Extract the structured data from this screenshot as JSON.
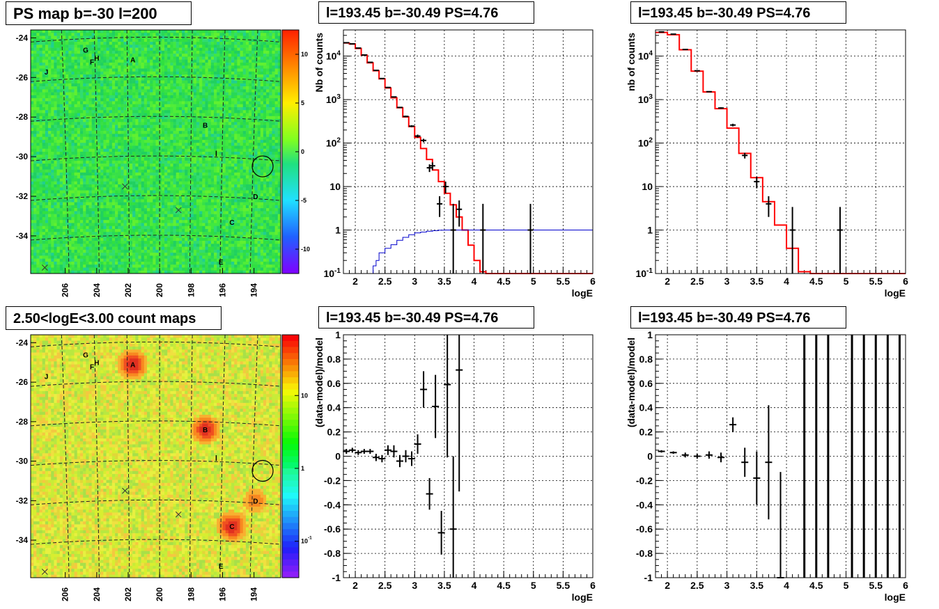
{
  "panels": {
    "top_left_title": "PS map b=-30 l=200",
    "top_mid_title": "l=193.45 b=-30.49 PS=4.76",
    "top_right_title": "l=193.45 b=-30.49 PS=4.76",
    "bottom_left_title": "2.50<logE<3.00 count maps",
    "bottom_mid_title": "l=193.45 b=-30.49 PS=4.76",
    "bottom_right_title": "l=193.45 b=-30.49 PS=4.76"
  },
  "colors": {
    "model_line": "#ff0000",
    "aux_line": "#0000cc",
    "data_points": "#000000",
    "frame": "#000000",
    "grid": "#000000"
  },
  "chart_data": [
    {
      "id": "ps_map",
      "type": "heatmap",
      "title": "PS map b=-30 l=200",
      "x_ticks": [
        "206",
        "204",
        "202",
        "200",
        "198",
        "196",
        "194"
      ],
      "y_ticks": [
        "-24",
        "-26",
        "-28",
        "-30",
        "-32",
        "-34"
      ],
      "colorbar_ticks": [
        "10",
        "5",
        "0",
        "-5",
        "-10"
      ],
      "sources": [
        {
          "label": "G",
          "l": 204.7,
          "b": -24.6
        },
        {
          "label": "H",
          "l": 204.0,
          "b": -25.0
        },
        {
          "label": "F",
          "l": 204.3,
          "b": -25.2
        },
        {
          "label": "A",
          "l": 201.7,
          "b": -25.1
        },
        {
          "label": "J",
          "l": 207.2,
          "b": -25.7
        },
        {
          "label": "B",
          "l": 197.1,
          "b": -28.4
        },
        {
          "label": "D",
          "l": 193.9,
          "b": -32.0
        },
        {
          "label": "C",
          "l": 195.4,
          "b": -33.3
        },
        {
          "label": "E",
          "l": 196.1,
          "b": -35.3
        }
      ],
      "selected": {
        "l": 193.45,
        "b": -30.49
      }
    },
    {
      "id": "nb_counts_fit",
      "type": "line",
      "title": "l=193.45 b=-30.49 PS=4.76",
      "xlabel": "logE",
      "ylabel": "Nb of counts",
      "xlim": [
        1.8,
        6
      ],
      "ylim": [
        0.1,
        40000
      ],
      "y_scale": "log",
      "x_ticks": [
        "2",
        "2.5",
        "3",
        "3.5",
        "4",
        "4.5",
        "5",
        "5.5",
        "6"
      ],
      "y_ticks": [
        "10^-1",
        "1",
        "10",
        "10^2",
        "10^3",
        "10^4"
      ],
      "series": [
        {
          "kind": "model_step",
          "x": [
            1.8,
            1.9,
            2.0,
            2.1,
            2.2,
            2.3,
            2.4,
            2.5,
            2.6,
            2.7,
            2.8,
            2.9,
            3.0,
            3.1,
            3.2,
            3.3,
            3.4,
            3.5,
            3.6,
            3.7,
            3.8,
            3.9,
            4.0,
            4.1,
            4.2,
            6.0
          ],
          "y": [
            20000,
            19000,
            15000,
            10500,
            7000,
            4600,
            3000,
            1850,
            1100,
            650,
            400,
            240,
            135,
            75,
            42,
            24,
            13,
            7,
            3.8,
            2,
            1,
            0.45,
            0.2,
            0.11,
            0.1,
            0.1
          ]
        },
        {
          "kind": "aux_step",
          "x": [
            1.8,
            2.0,
            2.2,
            2.3,
            2.35,
            2.4,
            2.5,
            2.6,
            2.7,
            2.8,
            2.9,
            3.0,
            3.1,
            3.2,
            3.3,
            3.4,
            3.5,
            6.0
          ],
          "y": [
            0.1,
            0.1,
            0.1,
            0.15,
            0.2,
            0.3,
            0.38,
            0.46,
            0.58,
            0.68,
            0.78,
            0.86,
            0.9,
            0.94,
            0.97,
            0.99,
            1,
            1
          ]
        },
        {
          "kind": "data",
          "x": [
            1.85,
            1.95,
            2.05,
            2.15,
            2.25,
            2.35,
            2.45,
            2.55,
            2.65,
            2.75,
            2.85,
            2.95,
            3.05,
            3.15,
            3.25,
            3.3,
            3.42,
            3.52,
            3.65,
            3.75,
            4.15,
            4.95
          ],
          "y": [
            20300,
            19100,
            15300,
            10600,
            7200,
            4700,
            3050,
            1900,
            1150,
            660,
            410,
            245,
            145,
            115,
            27,
            30,
            4,
            10,
            1,
            3,
            1,
            1
          ],
          "err": [
            0.02,
            0.02,
            0.02,
            0.02,
            0.02,
            0.02,
            0.02,
            0.03,
            0.03,
            0.03,
            0.04,
            0.05,
            0.08,
            0.09,
            0.2,
            0.2,
            0.5,
            0.3,
            1.5,
            0.6,
            1.5,
            1.5
          ]
        }
      ]
    },
    {
      "id": "nb_counts_rebinned",
      "type": "line",
      "title": "l=193.45 b=-30.49 PS=4.76",
      "xlabel": "logE",
      "ylabel": "nb of counts",
      "xlim": [
        1.8,
        6
      ],
      "ylim": [
        0.1,
        40000
      ],
      "y_scale": "log",
      "x_ticks": [
        "2",
        "2.5",
        "3",
        "3.5",
        "4",
        "4.5",
        "5",
        "5.5",
        "6"
      ],
      "y_ticks": [
        "10^-1",
        "1",
        "10",
        "10^2",
        "10^3",
        "10^4"
      ],
      "series": [
        {
          "kind": "model_step",
          "x": [
            1.8,
            2.0,
            2.2,
            2.4,
            2.6,
            2.8,
            3.0,
            3.2,
            3.4,
            3.6,
            3.8,
            4.0,
            4.2,
            4.4,
            6.0
          ],
          "y": [
            35000,
            31000,
            14000,
            4500,
            1500,
            620,
            220,
            58,
            16,
            4.5,
            1.3,
            0.38,
            0.11,
            0.1,
            0.1
          ]
        },
        {
          "kind": "data",
          "x": [
            1.9,
            2.1,
            2.3,
            2.5,
            2.7,
            2.9,
            3.1,
            3.3,
            3.5,
            3.7,
            4.1,
            4.9
          ],
          "y": [
            36000,
            32000,
            14200,
            4600,
            1520,
            640,
            260,
            52,
            13,
            4,
            1,
            1
          ],
          "err": [
            0.01,
            0.01,
            0.01,
            0.02,
            0.03,
            0.04,
            0.07,
            0.15,
            0.3,
            0.5,
            1.2,
            1.2
          ]
        }
      ]
    },
    {
      "id": "count_map",
      "type": "heatmap",
      "title": "2.50<logE<3.00 count maps",
      "x_ticks": [
        "206",
        "204",
        "202",
        "200",
        "198",
        "196",
        "194"
      ],
      "y_ticks": [
        "-24",
        "-26",
        "-28",
        "-30",
        "-32",
        "-34"
      ],
      "colorbar_ticks": [
        "10",
        "1",
        "10^-1"
      ],
      "sources": [
        {
          "label": "G",
          "l": 204.7,
          "b": -24.6
        },
        {
          "label": "H",
          "l": 204.0,
          "b": -25.0
        },
        {
          "label": "F",
          "l": 204.3,
          "b": -25.2
        },
        {
          "label": "A",
          "l": 201.7,
          "b": -25.1
        },
        {
          "label": "J",
          "l": 207.2,
          "b": -25.7
        },
        {
          "label": "B",
          "l": 197.1,
          "b": -28.4
        },
        {
          "label": "D",
          "l": 193.9,
          "b": -32.0
        },
        {
          "label": "C",
          "l": 195.4,
          "b": -33.3
        },
        {
          "label": "E",
          "l": 196.1,
          "b": -35.3
        }
      ],
      "selected": {
        "l": 193.45,
        "b": -30.49
      }
    },
    {
      "id": "residual_fit",
      "type": "scatter",
      "title": "l=193.45 b=-30.49 PS=4.76",
      "xlabel": "logE",
      "ylabel": "(data-model)/model",
      "xlim": [
        1.8,
        6
      ],
      "ylim": [
        -1,
        1
      ],
      "x_ticks": [
        "2",
        "2.5",
        "3",
        "3.5",
        "4",
        "4.5",
        "5",
        "5.5",
        "6"
      ],
      "y_ticks": [
        "1",
        "0.8",
        "0.6",
        "0.4",
        "0.2",
        "0",
        "-0.2",
        "-0.4",
        "-0.6",
        "-0.8",
        "-1"
      ],
      "points": {
        "x": [
          1.85,
          1.95,
          2.05,
          2.15,
          2.25,
          2.35,
          2.45,
          2.55,
          2.65,
          2.75,
          2.85,
          2.95,
          3.05,
          3.15,
          3.25,
          3.35,
          3.45,
          3.55,
          3.65,
          3.75
        ],
        "y": [
          0.04,
          0.05,
          0.03,
          0.04,
          0.04,
          -0.01,
          -0.02,
          0.05,
          0.04,
          -0.04,
          0.0,
          -0.02,
          0.1,
          0.55,
          -0.31,
          0.41,
          -0.63,
          0.59,
          -0.6,
          0.71
        ],
        "err": [
          0.02,
          0.02,
          0.02,
          0.02,
          0.02,
          0.03,
          0.03,
          0.04,
          0.05,
          0.05,
          0.05,
          0.06,
          0.08,
          0.15,
          0.13,
          0.26,
          0.18,
          0.6,
          0.6,
          1.0
        ]
      }
    },
    {
      "id": "residual_rebinned",
      "type": "scatter",
      "title": "l=193.45 b=-30.49 PS=4.76",
      "xlabel": "logE",
      "ylabel": "(data-model)/model",
      "xlim": [
        1.8,
        6
      ],
      "ylim": [
        -1,
        1
      ],
      "x_ticks": [
        "2",
        "2.5",
        "3",
        "3.5",
        "4",
        "4.5",
        "5",
        "5.5",
        "6"
      ],
      "y_ticks": [
        "1",
        "0.8",
        "0.6",
        "0.4",
        "0.2",
        "0",
        "-0.2",
        "-0.4",
        "-0.6",
        "-0.8",
        "-1"
      ],
      "points": {
        "x": [
          1.9,
          2.1,
          2.3,
          2.5,
          2.7,
          2.9,
          3.1,
          3.3,
          3.5,
          3.7,
          3.9
        ],
        "y": [
          0.04,
          0.03,
          0.01,
          0.0,
          0.01,
          -0.01,
          0.26,
          -0.05,
          -0.18,
          -0.05,
          -1.0
        ],
        "err": [
          0.01,
          0.01,
          0.02,
          0.02,
          0.03,
          0.04,
          0.06,
          0.12,
          0.22,
          0.47,
          0.87
        ]
      },
      "full_range_bars_x": [
        4.3,
        4.5,
        4.7,
        5.1,
        5.3,
        5.5,
        5.7,
        5.9
      ]
    }
  ]
}
